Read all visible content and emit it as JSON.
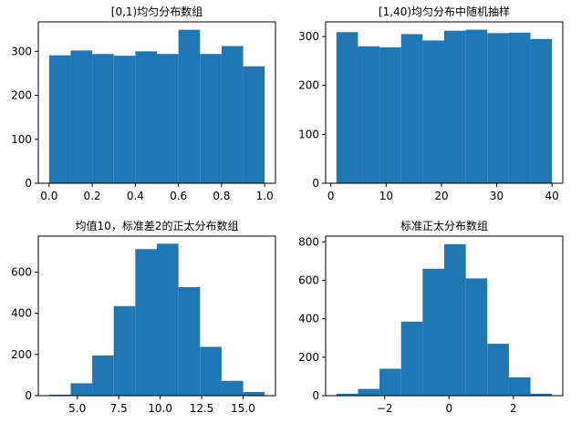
{
  "colors": {
    "bar": "#1f77b4",
    "axis": "#000000",
    "background": "#ffffff"
  },
  "chart_data": [
    {
      "type": "bar",
      "title": "[0,1)均匀分布数组",
      "xlabel": "",
      "ylabel": "",
      "bin_edges": [
        0.0,
        0.1,
        0.2,
        0.3,
        0.4,
        0.5,
        0.6,
        0.7,
        0.8,
        0.9,
        1.0
      ],
      "values": [
        291,
        302,
        294,
        290,
        300,
        294,
        349,
        294,
        312,
        266
      ],
      "xlim": [
        -0.05,
        1.05
      ],
      "ylim": [
        0,
        367
      ],
      "xticks": [
        0.0,
        0.2,
        0.4,
        0.6,
        0.8,
        1.0
      ],
      "xtick_labels": [
        "0.0",
        "0.2",
        "0.4",
        "0.6",
        "0.8",
        "1.0"
      ],
      "yticks": [
        0,
        100,
        200,
        300
      ],
      "ytick_labels": [
        "0",
        "100",
        "200",
        "300"
      ],
      "grid": false
    },
    {
      "type": "bar",
      "title": "[1,40)均匀分布中随机抽样",
      "xlabel": "",
      "ylabel": "",
      "bin_edges": [
        1.0,
        4.9,
        8.8,
        12.7,
        16.6,
        20.5,
        24.4,
        28.3,
        32.2,
        36.1,
        40.0
      ],
      "values": [
        309,
        280,
        278,
        305,
        292,
        312,
        314,
        307,
        308,
        295
      ],
      "xlim": [
        -0.95,
        41.95
      ],
      "ylim": [
        0,
        330
      ],
      "xticks": [
        0,
        10,
        20,
        30,
        40
      ],
      "xtick_labels": [
        "0",
        "10",
        "20",
        "30",
        "40"
      ],
      "yticks": [
        0,
        100,
        200,
        300
      ],
      "ytick_labels": [
        "0",
        "100",
        "200",
        "300"
      ],
      "grid": false
    },
    {
      "type": "bar",
      "title": "均值10，标准差2的正太分布数组",
      "xlabel": "",
      "ylabel": "",
      "bin_edges": [
        3.3,
        4.6,
        5.9,
        7.2,
        8.5,
        9.8,
        11.1,
        12.4,
        13.7,
        15.0,
        16.3
      ],
      "values": [
        5,
        60,
        195,
        435,
        712,
        738,
        527,
        237,
        72,
        18
      ],
      "xlim": [
        2.65,
        16.95
      ],
      "ylim": [
        0,
        775
      ],
      "xticks": [
        5.0,
        7.5,
        10.0,
        12.5,
        15.0
      ],
      "xtick_labels": [
        "5.0",
        "7.5",
        "10.0",
        "12.5",
        "15.0"
      ],
      "yticks": [
        0,
        200,
        400,
        600
      ],
      "ytick_labels": [
        "0",
        "200",
        "400",
        "600"
      ],
      "grid": false
    },
    {
      "type": "bar",
      "title": "标准正太分布数组",
      "xlabel": "",
      "ylabel": "",
      "bin_edges": [
        -3.5,
        -2.83,
        -2.16,
        -1.49,
        -0.82,
        -0.15,
        0.52,
        1.19,
        1.86,
        2.53,
        3.2
      ],
      "values": [
        10,
        35,
        140,
        385,
        660,
        788,
        610,
        270,
        95,
        10
      ],
      "xlim": [
        -3.835,
        3.535
      ],
      "ylim": [
        0,
        830
      ],
      "xticks": [
        -2,
        0,
        2
      ],
      "xtick_labels": [
        "−2",
        "0",
        "2"
      ],
      "yticks": [
        0,
        200,
        400,
        600,
        800
      ],
      "ytick_labels": [
        "0",
        "200",
        "400",
        "600",
        "800"
      ],
      "grid": false
    }
  ]
}
